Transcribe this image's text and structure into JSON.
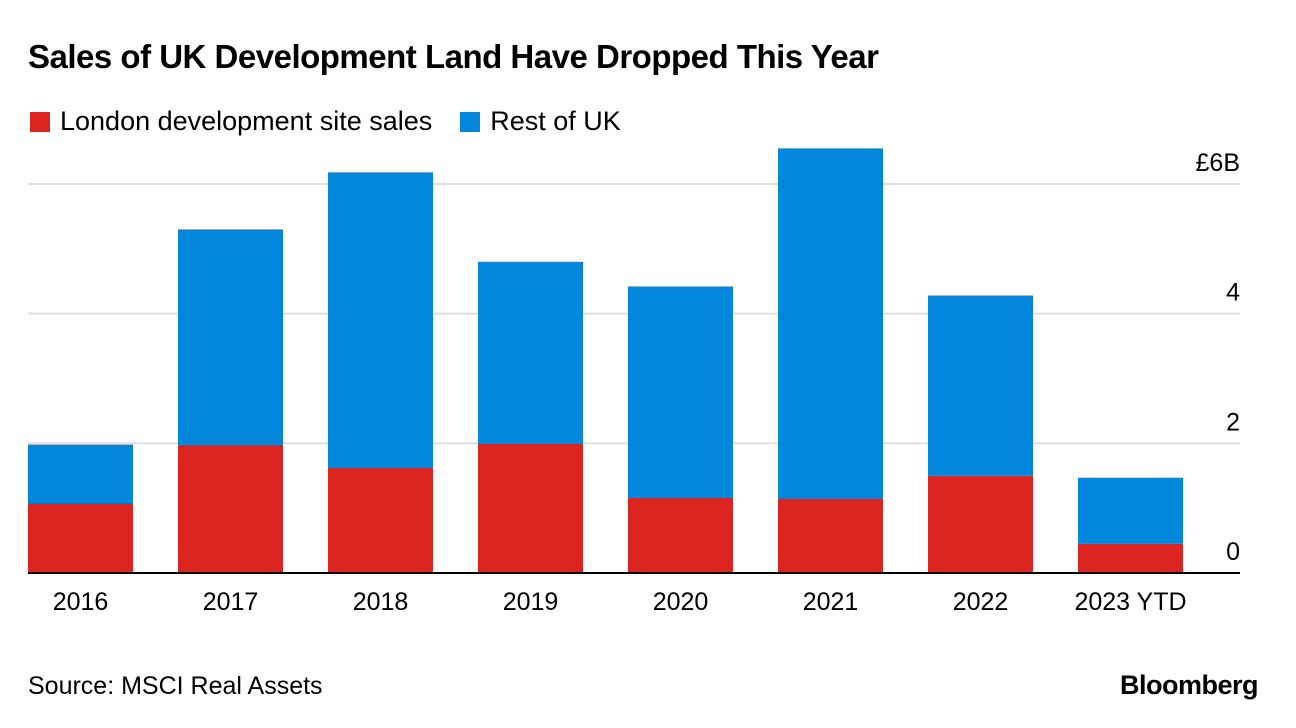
{
  "title": "Sales of UK Development Land Have Dropped This Year",
  "source": "Source: MSCI Real Assets",
  "brand": "Bloomberg",
  "colors": {
    "london": "#dc2420",
    "rest": "#0287dc",
    "grid": "#dedede",
    "axis": "#000000"
  },
  "chart_data": {
    "type": "bar",
    "stacked": true,
    "title": "Sales of UK Development Land Have Dropped This Year",
    "categories": [
      "2016",
      "2017",
      "2018",
      "2019",
      "2020",
      "2021",
      "2022",
      "2023 YTD"
    ],
    "series": [
      {
        "name": "London development site sales",
        "color": "#dc2420",
        "values": [
          1.08,
          1.98,
          1.62,
          2.0,
          1.17,
          1.15,
          1.5,
          0.45
        ]
      },
      {
        "name": "Rest of UK",
        "color": "#0287dc",
        "values": [
          0.9,
          3.32,
          4.56,
          2.8,
          3.25,
          5.4,
          2.78,
          1.02
        ]
      }
    ],
    "yticks": [
      {
        "value": 0,
        "label": "0"
      },
      {
        "value": 2,
        "label": "2"
      },
      {
        "value": 4,
        "label": "4"
      },
      {
        "value": 6,
        "label": "£6B"
      }
    ],
    "ylim": [
      0,
      6
    ],
    "xlabel": "",
    "ylabel": "",
    "grid": true,
    "y_axis_side": "right",
    "legend_position": "top-left"
  }
}
